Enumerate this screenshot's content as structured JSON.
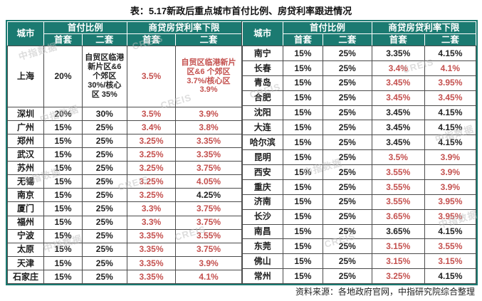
{
  "title": "表：5.17新政后重点城市首付比例、房贷利率跟进情况",
  "source": "资料来源：各地政府官网，中指研究院综合整理",
  "watermark": {
    "cn": "中指数据",
    "en": "CREIS"
  },
  "colors": {
    "header_teal": "#1b7a71",
    "highlight_red": "#c4504e"
  },
  "headers": {
    "city": "城市",
    "down_payment_group": "首付比例",
    "rate_group": "商贷房贷利率下限",
    "first": "首套",
    "second": "二套"
  },
  "chart_data": [
    {
      "type": "table",
      "name": "left",
      "columns": [
        "城市",
        "首付比例-首套",
        "首付比例-二套",
        "商贷房贷利率下限-首套",
        "商贷房贷利率下限-二套"
      ],
      "rows": [
        {
          "city": "上海",
          "down_first": "20%",
          "down_second": "自贸区临港新片区&6 个郊区 30%/核心区 35%",
          "rate_first": "3.5%",
          "rate_second": "自贸区临港新片区&6 个郊区 3.7%/核心区 3.9%",
          "rate_first_red": true,
          "rate_second_red": true
        },
        {
          "city": "深圳",
          "down_first": "20%",
          "down_second": "30%",
          "rate_first": "3.5%",
          "rate_second": "3.9%",
          "rate_first_red": true,
          "rate_second_red": true
        },
        {
          "city": "广州",
          "down_first": "15%",
          "down_second": "25%",
          "rate_first": "3.4%",
          "rate_second": "3.8%",
          "rate_first_red": true,
          "rate_second_red": true
        },
        {
          "city": "郑州",
          "down_first": "15%",
          "down_second": "25%",
          "rate_first": "3.25%",
          "rate_second": "3.35%",
          "rate_first_red": true,
          "rate_second_red": true
        },
        {
          "city": "武汉",
          "down_first": "15%",
          "down_second": "25%",
          "rate_first": "3.25%",
          "rate_second": "3.35%",
          "rate_first_red": true,
          "rate_second_red": true
        },
        {
          "city": "苏州",
          "down_first": "15%",
          "down_second": "25%",
          "rate_first": "3.25%",
          "rate_second": "3.75%",
          "rate_first_red": true,
          "rate_second_red": true
        },
        {
          "city": "无锡",
          "down_first": "15%",
          "down_second": "25%",
          "rate_first": "3.25%",
          "rate_second": "4.05%",
          "rate_first_red": true,
          "rate_second_red": true
        },
        {
          "city": "南京",
          "down_first": "15%",
          "down_second": "25%",
          "rate_first": "3.25%",
          "rate_second": "4.25%",
          "rate_first_red": true,
          "rate_second_red": false
        },
        {
          "city": "厦门",
          "down_first": "15%",
          "down_second": "25%",
          "rate_first": "3.3%",
          "rate_second": "3.75%",
          "rate_first_red": true,
          "rate_second_red": true
        },
        {
          "city": "福州",
          "down_first": "15%",
          "down_second": "25%",
          "rate_first": "3.3%",
          "rate_second": "3.75%",
          "rate_first_red": true,
          "rate_second_red": true
        },
        {
          "city": "宁波",
          "down_first": "15%",
          "down_second": "25%",
          "rate_first": "3.35%",
          "rate_second": "3.55%",
          "rate_first_red": true,
          "rate_second_red": true
        },
        {
          "city": "太原",
          "down_first": "15%",
          "down_second": "25%",
          "rate_first": "3.35%",
          "rate_second": "3.75%",
          "rate_first_red": true,
          "rate_second_red": true
        },
        {
          "city": "天津",
          "down_first": "15%",
          "down_second": "25%",
          "rate_first": "3.35%",
          "rate_second": "3.9%",
          "rate_first_red": true,
          "rate_second_red": true
        },
        {
          "city": "石家庄",
          "down_first": "15%",
          "down_second": "25%",
          "rate_first": "3.35%",
          "rate_second": "4.1%",
          "rate_first_red": true,
          "rate_second_red": true
        }
      ]
    },
    {
      "type": "table",
      "name": "right",
      "columns": [
        "城市",
        "首付比例-首套",
        "首付比例-二套",
        "商贷房贷利率下限-首套",
        "商贷房贷利率下限-二套"
      ],
      "rows": [
        {
          "city": "南宁",
          "down_first": "15%",
          "down_second": "25%",
          "rate_first": "3.35%",
          "rate_second": "4.15%",
          "rate_first_red": false,
          "rate_second_red": false
        },
        {
          "city": "长春",
          "down_first": "15%",
          "down_second": "25%",
          "rate_first": "3.4%",
          "rate_second": "4.1%",
          "rate_first_red": true,
          "rate_second_red": true
        },
        {
          "city": "青岛",
          "down_first": "15%",
          "down_second": "25%",
          "rate_first": "3.45%",
          "rate_second": "3.95%",
          "rate_first_red": true,
          "rate_second_red": true
        },
        {
          "city": "合肥",
          "down_first": "15%",
          "down_second": "25%",
          "rate_first": "3.45%",
          "rate_second": "3.45%",
          "rate_first_red": true,
          "rate_second_red": true
        },
        {
          "city": "沈阳",
          "down_first": "15%",
          "down_second": "25%",
          "rate_first": "3.45%",
          "rate_second": "4.15%",
          "rate_first_red": false,
          "rate_second_red": false
        },
        {
          "city": "大连",
          "down_first": "15%",
          "down_second": "25%",
          "rate_first": "3.45%",
          "rate_second": "4.15%",
          "rate_first_red": false,
          "rate_second_red": false
        },
        {
          "city": "哈尔滨",
          "down_first": "15%",
          "down_second": "25%",
          "rate_first": "3.45%",
          "rate_second": "4.15%",
          "rate_first_red": false,
          "rate_second_red": false
        },
        {
          "city": "昆明",
          "down_first": "15%",
          "down_second": "25%",
          "rate_first": "3.5%",
          "rate_second": "3.9%",
          "rate_first_red": true,
          "rate_second_red": true
        },
        {
          "city": "西安",
          "down_first": "15%",
          "down_second": "25%",
          "rate_first": "3.55%",
          "rate_second": "3.9%",
          "rate_first_red": true,
          "rate_second_red": true
        },
        {
          "city": "重庆",
          "down_first": "15%",
          "down_second": "25%",
          "rate_first": "3.55%",
          "rate_second": "3.9%",
          "rate_first_red": true,
          "rate_second_red": true
        },
        {
          "city": "济南",
          "down_first": "15%",
          "down_second": "25%",
          "rate_first": "3.55%",
          "rate_second": "3.95%",
          "rate_first_red": true,
          "rate_second_red": true
        },
        {
          "city": "长沙",
          "down_first": "15%",
          "down_second": "25%",
          "rate_first": "3.65%",
          "rate_second": "3.95%",
          "rate_first_red": true,
          "rate_second_red": true
        },
        {
          "city": "南昌",
          "down_first": "15%",
          "down_second": "25%",
          "rate_first": "3.65%",
          "rate_second": "4.15%",
          "rate_first_red": false,
          "rate_second_red": false
        },
        {
          "city": "东莞",
          "down_first": "15%",
          "down_second": "25%",
          "rate_first": "3.15%",
          "rate_second": "3.55%",
          "rate_first_red": true,
          "rate_second_red": true
        },
        {
          "city": "佛山",
          "down_first": "15%",
          "down_second": "25%",
          "rate_first": "3.15%",
          "rate_second": "3.15%",
          "rate_first_red": true,
          "rate_second_red": true
        },
        {
          "city": "常州",
          "down_first": "15%",
          "down_second": "25%",
          "rate_first": "3.25%",
          "rate_second": "4.15%",
          "rate_first_red": true,
          "rate_second_red": false
        }
      ]
    }
  ]
}
